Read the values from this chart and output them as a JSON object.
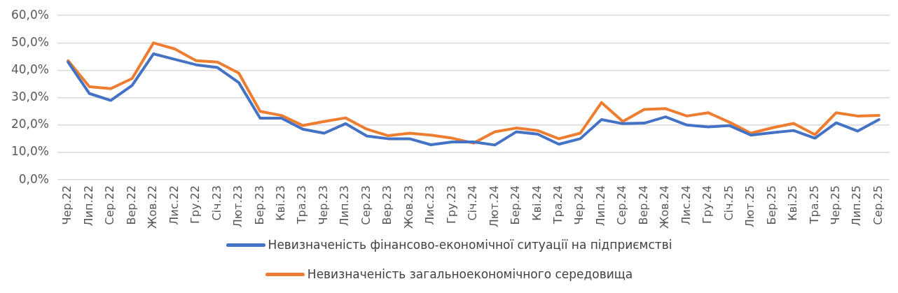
{
  "chart_data": {
    "type": "line",
    "categories": [
      "Чер.22",
      "Лип.22",
      "Сер.22",
      "Вер.22",
      "Жов.22",
      "Лис.22",
      "Гру.22",
      "Січ.23",
      "Лют.23",
      "Бер.23",
      "Кві.23",
      "Тра.23",
      "Чер.23",
      "Лип.23",
      "Сер.23",
      "Вер.23",
      "Жов.23",
      "Лис.23",
      "Гру.23",
      "Січ.24",
      "Лют.24",
      "Бер.24",
      "Кві.24",
      "Тра.24",
      "Чер.24",
      "Лип.24",
      "Сер.24",
      "Вер.24",
      "Жов.24",
      "Лис.24",
      "Гру.24",
      "Січ.25",
      "Лют.25",
      "Бер.25",
      "Кві.25",
      "Тра.25",
      "Чер.25",
      "Лип.25",
      "Сер.25"
    ],
    "series": [
      {
        "name": "Невизначеність фінансово-економічної ситуації на підприємстві",
        "color": "#4472c4",
        "values": [
          43,
          31.5,
          29,
          34.5,
          46,
          44,
          42,
          41,
          35.5,
          22.5,
          22.5,
          18.5,
          17,
          20.5,
          16,
          15,
          15,
          12.8,
          13.8,
          13.8,
          12.7,
          17.5,
          16.7,
          13,
          15,
          22,
          20.5,
          20.7,
          23,
          20,
          19.3,
          19.8,
          16.3,
          17.2,
          18,
          15.2,
          20.8,
          17.8,
          22
        ]
      },
      {
        "name": "Невизначеність загальноекономічного середовища",
        "color": "#ed7d31",
        "values": [
          43.5,
          34,
          33.3,
          37,
          50,
          47.8,
          43.5,
          43,
          39,
          25,
          23.5,
          19.8,
          21.3,
          22.6,
          18.5,
          16.1,
          17,
          16.3,
          15.2,
          13.4,
          17.5,
          18.9,
          18,
          15,
          17,
          28.2,
          21.3,
          25.7,
          26,
          23.3,
          24.5,
          21,
          17,
          19,
          20.6,
          16.5,
          24.5,
          23.3,
          23.5
        ]
      }
    ],
    "ylim": [
      0,
      60
    ],
    "yticks": [
      {
        "value": 0,
        "label": "0,0%"
      },
      {
        "value": 10,
        "label": "10,0%"
      },
      {
        "value": 20,
        "label": "20,0%"
      },
      {
        "value": 30,
        "label": "30,0%"
      },
      {
        "value": 40,
        "label": "40,0%"
      },
      {
        "value": 50,
        "label": "50,0%"
      },
      {
        "value": 60,
        "label": "60,0%"
      }
    ],
    "grid": "y",
    "legend": "bottom",
    "marker": "none",
    "line_style": "solid"
  }
}
